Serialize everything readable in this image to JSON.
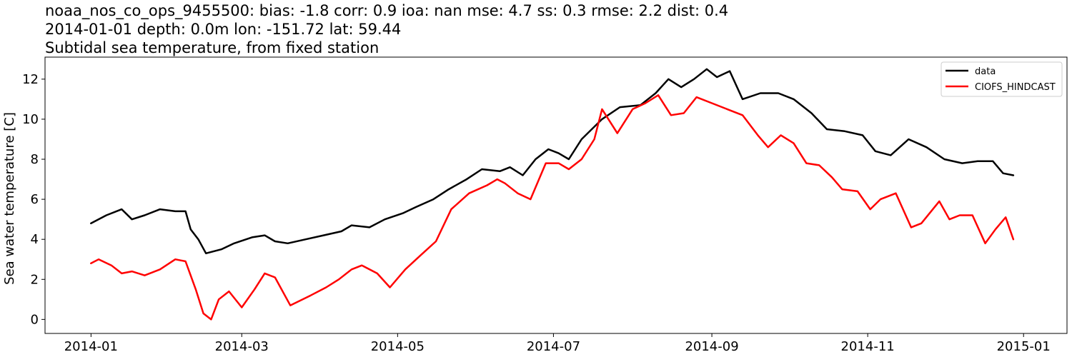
{
  "titles": [
    "noaa_nos_co_ops_9455500: bias: -1.8  corr: 0.9  ioa: nan  mse: 4.7  ss: 0.3  rmse: 2.2  dist: 0.4",
    "2014-01-01 depth: 0.0m lon: -151.72 lat: 59.44",
    "Subtidal sea temperature, from fixed station"
  ],
  "chart_data": {
    "type": "line",
    "title": "Subtidal sea temperature, from fixed station",
    "xlabel": "",
    "ylabel": "Sea water temperature [C]",
    "xlim": [
      "2013-12-14",
      "2015-01-18"
    ],
    "ylim": [
      -0.7,
      13.1
    ],
    "x_ticks": [
      "2014-01",
      "2014-03",
      "2014-05",
      "2014-07",
      "2014-09",
      "2014-11",
      "2015-01"
    ],
    "y_ticks": [
      0,
      2,
      4,
      6,
      8,
      10,
      12
    ],
    "grid": false,
    "legend": "top-right",
    "series": [
      {
        "name": "data",
        "color": "#000000",
        "x": [
          "2014-01-01",
          "2014-01-07",
          "2014-01-13",
          "2014-01-17",
          "2014-01-22",
          "2014-01-28",
          "2014-02-03",
          "2014-02-07",
          "2014-02-09",
          "2014-02-12",
          "2014-02-15",
          "2014-02-21",
          "2014-02-26",
          "2014-03-05",
          "2014-03-10",
          "2014-03-14",
          "2014-03-19",
          "2014-03-26",
          "2014-04-02",
          "2014-04-09",
          "2014-04-13",
          "2014-04-20",
          "2014-04-26",
          "2014-05-03",
          "2014-05-08",
          "2014-05-15",
          "2014-05-21",
          "2014-05-28",
          "2014-06-03",
          "2014-06-10",
          "2014-06-14",
          "2014-06-19",
          "2014-06-24",
          "2014-06-29",
          "2014-07-03",
          "2014-07-07",
          "2014-07-12",
          "2014-07-20",
          "2014-07-27",
          "2014-08-04",
          "2014-08-10",
          "2014-08-15",
          "2014-08-20",
          "2014-08-25",
          "2014-08-30",
          "2014-09-03",
          "2014-09-08",
          "2014-09-13",
          "2014-09-20",
          "2014-09-27",
          "2014-10-03",
          "2014-10-10",
          "2014-10-16",
          "2014-10-23",
          "2014-10-30",
          "2014-11-04",
          "2014-11-10",
          "2014-11-17",
          "2014-11-24",
          "2014-12-01",
          "2014-12-08",
          "2014-12-14",
          "2014-12-20",
          "2014-12-24",
          "2014-12-28"
        ],
        "values": [
          4.8,
          5.2,
          5.5,
          5.0,
          5.2,
          5.5,
          5.4,
          5.4,
          4.5,
          4.0,
          3.3,
          3.5,
          3.8,
          4.1,
          4.2,
          3.9,
          3.8,
          4.0,
          4.2,
          4.4,
          4.7,
          4.6,
          5.0,
          5.3,
          5.6,
          6.0,
          6.5,
          7.0,
          7.5,
          7.4,
          7.6,
          7.2,
          8.0,
          8.5,
          8.3,
          8.0,
          9.0,
          10.0,
          10.6,
          10.7,
          11.3,
          12.0,
          11.6,
          12.0,
          12.5,
          12.1,
          12.4,
          11.0,
          11.3,
          11.3,
          11.0,
          10.3,
          9.5,
          9.4,
          9.2,
          8.4,
          8.2,
          9.0,
          8.6,
          8.0,
          7.8,
          7.9,
          7.9,
          7.3,
          7.2
        ]
      },
      {
        "name": "CIOFS_HINDCAST",
        "color": "#ff0000",
        "x": [
          "2014-01-01",
          "2014-01-04",
          "2014-01-09",
          "2014-01-13",
          "2014-01-17",
          "2014-01-22",
          "2014-01-28",
          "2014-02-03",
          "2014-02-07",
          "2014-02-11",
          "2014-02-14",
          "2014-02-17",
          "2014-02-20",
          "2014-02-24",
          "2014-03-01",
          "2014-03-06",
          "2014-03-10",
          "2014-03-14",
          "2014-03-20",
          "2014-03-28",
          "2014-04-03",
          "2014-04-08",
          "2014-04-13",
          "2014-04-17",
          "2014-04-23",
          "2014-04-28",
          "2014-05-04",
          "2014-05-10",
          "2014-05-16",
          "2014-05-22",
          "2014-05-29",
          "2014-06-05",
          "2014-06-09",
          "2014-06-12",
          "2014-06-17",
          "2014-06-22",
          "2014-06-28",
          "2014-07-03",
          "2014-07-07",
          "2014-07-12",
          "2014-07-17",
          "2014-07-20",
          "2014-07-26",
          "2014-08-01",
          "2014-08-06",
          "2014-08-11",
          "2014-08-16",
          "2014-08-21",
          "2014-08-26",
          "2014-09-01",
          "2014-09-07",
          "2014-09-13",
          "2014-09-19",
          "2014-09-23",
          "2014-09-28",
          "2014-10-03",
          "2014-10-08",
          "2014-10-13",
          "2014-10-18",
          "2014-10-22",
          "2014-10-28",
          "2014-11-02",
          "2014-11-06",
          "2014-11-12",
          "2014-11-18",
          "2014-11-22",
          "2014-11-29",
          "2014-12-03",
          "2014-12-07",
          "2014-12-12",
          "2014-12-17",
          "2014-12-21",
          "2014-12-25",
          "2014-12-28"
        ],
        "values": [
          2.8,
          3.0,
          2.7,
          2.3,
          2.4,
          2.2,
          2.5,
          3.0,
          2.9,
          1.5,
          0.3,
          0.0,
          1.0,
          1.4,
          0.6,
          1.5,
          2.3,
          2.1,
          0.7,
          1.2,
          1.6,
          2.0,
          2.5,
          2.7,
          2.3,
          1.6,
          2.5,
          3.2,
          3.9,
          5.5,
          6.3,
          6.7,
          7.0,
          6.8,
          6.3,
          6.0,
          7.8,
          7.8,
          7.5,
          8.0,
          9.0,
          10.5,
          9.3,
          10.5,
          10.8,
          11.2,
          10.2,
          10.3,
          11.1,
          10.8,
          10.5,
          10.2,
          9.2,
          8.6,
          9.2,
          8.8,
          7.8,
          7.7,
          7.1,
          6.5,
          6.4,
          5.5,
          6.0,
          6.3,
          4.6,
          4.8,
          5.9,
          5.0,
          5.2,
          5.2,
          3.8,
          4.5,
          5.1,
          4.0
        ]
      }
    ]
  }
}
